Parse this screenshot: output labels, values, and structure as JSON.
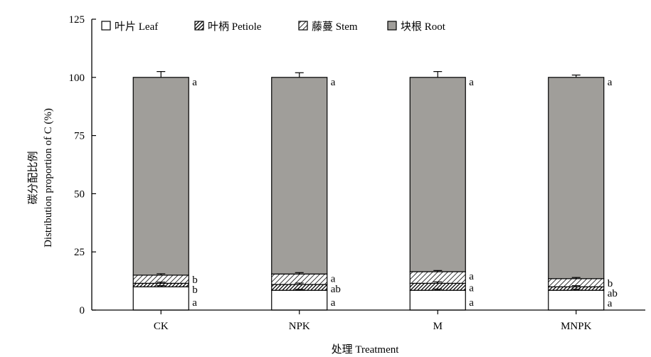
{
  "chart_data": {
    "type": "bar",
    "stacked": true,
    "title": "",
    "xlabel": "处理 Treatment",
    "ylabel_cn": "碳分配比例",
    "ylabel_en": "Distribution proportion of C (%)",
    "ylim": [
      0,
      125
    ],
    "yticks": [
      "0",
      "25",
      "50",
      "75",
      "100",
      "125"
    ],
    "categories": [
      "CK",
      "NPK",
      "M",
      "MNPK"
    ],
    "legend_position": "top",
    "series": [
      {
        "name": "叶片 Leaf",
        "pattern": "white",
        "values": [
          10.0,
          8.5,
          8.5,
          8.5
        ],
        "errors": [
          0.5,
          0.4,
          0.5,
          0.5
        ],
        "letters": [
          "a",
          "a",
          "a",
          "a"
        ]
      },
      {
        "name": "叶柄 Petiole",
        "pattern": "cross",
        "values": [
          1.5,
          2.5,
          3.0,
          1.5
        ],
        "errors": [
          0.5,
          0.6,
          0.6,
          0.5
        ],
        "letters": [
          "b",
          "ab",
          "a",
          "ab"
        ]
      },
      {
        "name": "藤蔓 Stem",
        "pattern": "diagonal",
        "values": [
          3.5,
          4.5,
          5.0,
          3.5
        ],
        "errors": [
          0.6,
          0.6,
          0.5,
          0.5
        ],
        "letters": [
          "b",
          "a",
          "a",
          "b"
        ]
      },
      {
        "name": "块根 Root",
        "pattern": "gray",
        "values": [
          85.0,
          84.5,
          83.5,
          86.5
        ],
        "errors": [
          2.5,
          2.0,
          2.5,
          1.0
        ],
        "letters": [
          "a",
          "a",
          "a",
          "a"
        ]
      }
    ],
    "colors": {
      "root_fill": "#a09e9a",
      "axis": "#000000"
    }
  }
}
